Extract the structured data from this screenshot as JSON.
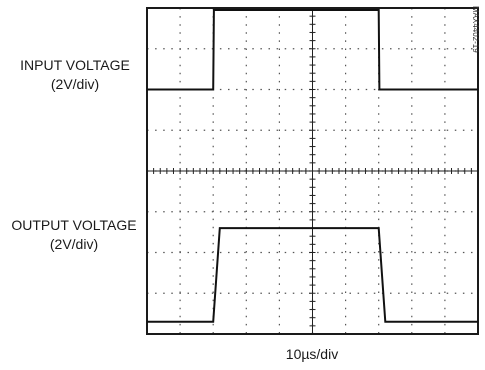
{
  "chart_data": {
    "type": "line",
    "title": "",
    "xlabel": "10µs/div",
    "grid": true,
    "divisions": {
      "x": 10,
      "y": 8
    },
    "part_number": "MAX4402-19",
    "series": [
      {
        "name": "INPUT VOLTAGE",
        "scale": "(2V/div)",
        "x": [
          0,
          2.0,
          2.02,
          7.0,
          7.02,
          10
        ],
        "y": [
          6.0,
          6.0,
          7.95,
          7.95,
          6.0,
          6.0
        ]
      },
      {
        "name": "OUTPUT VOLTAGE",
        "scale": "(2V/div)",
        "x": [
          0,
          2.0,
          2.2,
          7.0,
          7.2,
          10
        ],
        "y": [
          0.3,
          0.3,
          2.6,
          2.6,
          0.3,
          0.3
        ]
      }
    ]
  }
}
